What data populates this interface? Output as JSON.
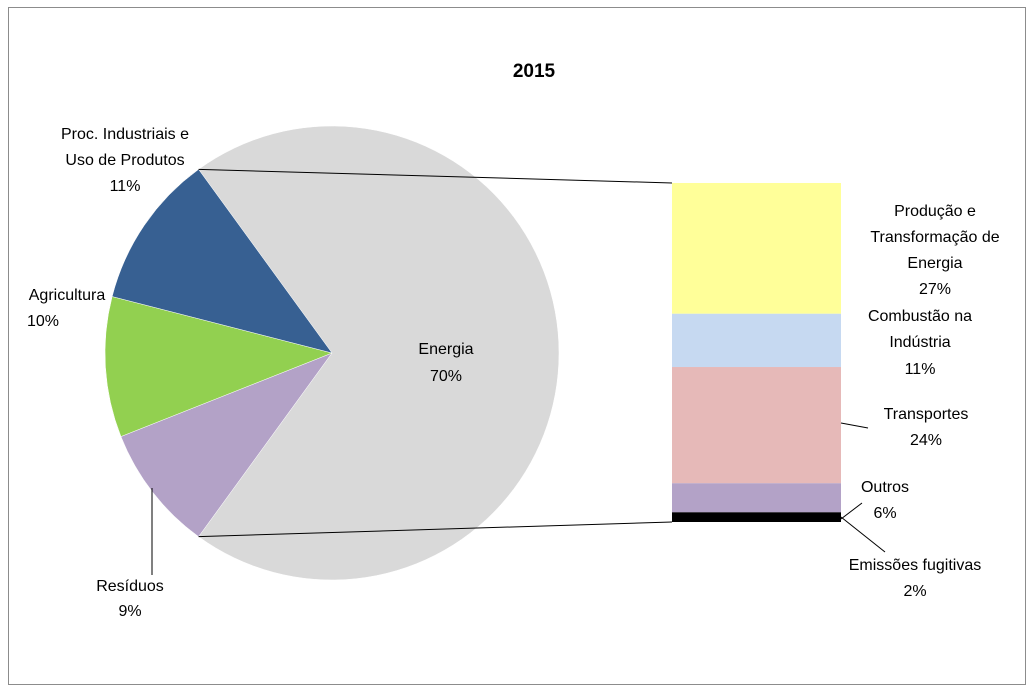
{
  "chart_data": {
    "type": "pie",
    "title": "2015",
    "pie": {
      "slices": [
        {
          "name": "Energia",
          "value": 70,
          "label": "70%",
          "color": "#d9d9d9"
        },
        {
          "name": "Resíduos",
          "value": 9,
          "label": "9%",
          "color": "#b3a2c7"
        },
        {
          "name": "Agricultura",
          "value": 10,
          "label": "10%",
          "color": "#92d050"
        },
        {
          "name": "Proc. Industriais e Uso de Produtos",
          "value": 11,
          "label": "11%",
          "color": "#376092"
        }
      ]
    },
    "breakdown": {
      "of": "Energia",
      "segments": [
        {
          "name": "Produção e Transformação de Energia",
          "value": 27,
          "label": "27%",
          "color": "#ffff99"
        },
        {
          "name": "Combustão na Indústria",
          "value": 11,
          "label": "11%",
          "color": "#c6d9f1"
        },
        {
          "name": "Transportes",
          "value": 24,
          "label": "24%",
          "color": "#e6b9b8"
        },
        {
          "name": "Outros",
          "value": 6,
          "label": "6%",
          "color": "#b3a2c7"
        },
        {
          "name": "Emissões fugitivas",
          "value": 2,
          "label": "2%",
          "color": "#000000"
        }
      ]
    }
  }
}
